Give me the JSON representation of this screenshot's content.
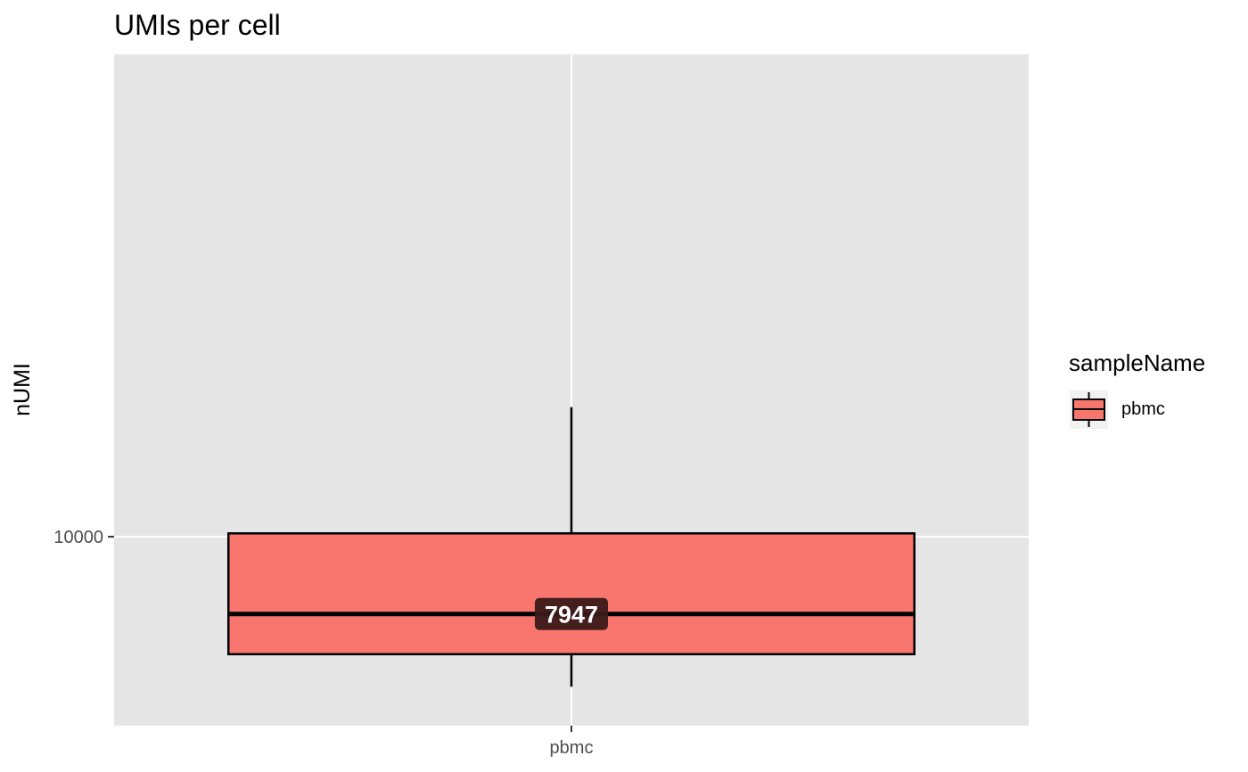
{
  "chart_data": {
    "type": "boxplot",
    "title": "UMIs per cell",
    "xlabel": "",
    "ylabel": "nUMI",
    "y_scale": "log10",
    "ylim": [
      5700,
      42000
    ],
    "y_ticks": [
      10000
    ],
    "y_tick_labels": [
      "10000"
    ],
    "grid": true,
    "categories": [
      "pbmc"
    ],
    "series": [
      {
        "name": "pbmc",
        "color": "#F8766D",
        "whisker_low": 6400,
        "q1": 7050,
        "median": 7947,
        "q3": 10100,
        "whisker_high": 14700
      }
    ],
    "annotations": [
      {
        "category": "pbmc",
        "y": 7947,
        "text": "7947"
      }
    ],
    "legend": {
      "title": "sampleName",
      "placement": "right",
      "entries": [
        "pbmc"
      ]
    }
  },
  "colors": {
    "panel_bg": "#E5E5E5",
    "grid": "#FFFFFF",
    "box_fill": "#F8766D",
    "label_bg": "#3A1A1A"
  }
}
